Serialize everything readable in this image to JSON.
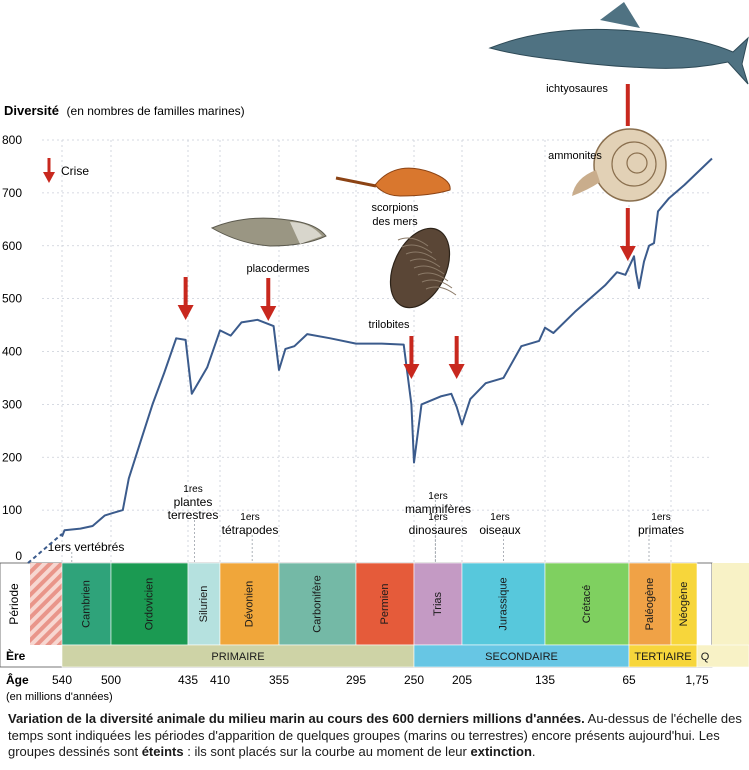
{
  "chart_data": {
    "type": "line",
    "ylabel": "Diversité",
    "ylabel_note": "(en nombres de familles marines)",
    "ylim": [
      0,
      800
    ],
    "yticks": [
      0,
      100,
      200,
      300,
      400,
      500,
      600,
      700,
      800
    ],
    "x_axis_label": "Âge",
    "x_axis_note": "(en millions d'années)",
    "age_ticks": [
      "540",
      "500",
      "435",
      "410",
      "355",
      "295",
      "250",
      "205",
      "135",
      "65",
      "1,75"
    ],
    "legend_crise": "Crise",
    "line_color": "#3b5b8c",
    "arrow_color": "#c8281e",
    "series": [
      {
        "points": [
          [
            540,
            50
          ],
          [
            538,
            62
          ],
          [
            525,
            65
          ],
          [
            515,
            70
          ],
          [
            505,
            90
          ],
          [
            498,
            95
          ],
          [
            490,
            100
          ],
          [
            485,
            160
          ],
          [
            475,
            230
          ],
          [
            465,
            300
          ],
          [
            455,
            360
          ],
          [
            445,
            425
          ],
          [
            437,
            422
          ],
          [
            432,
            320
          ],
          [
            420,
            370
          ],
          [
            410,
            440
          ],
          [
            400,
            430
          ],
          [
            390,
            455
          ],
          [
            375,
            460
          ],
          [
            360,
            448
          ],
          [
            355,
            365
          ],
          [
            350,
            405
          ],
          [
            343,
            410
          ],
          [
            333,
            433
          ],
          [
            315,
            425
          ],
          [
            295,
            415
          ],
          [
            275,
            415
          ],
          [
            258,
            413
          ],
          [
            252,
            300
          ],
          [
            250,
            190
          ],
          [
            243,
            300
          ],
          [
            225,
            315
          ],
          [
            215,
            320
          ],
          [
            210,
            295
          ],
          [
            205,
            262
          ],
          [
            198,
            310
          ],
          [
            185,
            340
          ],
          [
            170,
            350
          ],
          [
            155,
            410
          ],
          [
            140,
            420
          ],
          [
            135,
            445
          ],
          [
            128,
            435
          ],
          [
            110,
            475
          ],
          [
            85,
            525
          ],
          [
            75,
            550
          ],
          [
            68,
            545
          ],
          [
            60,
            580
          ],
          [
            58,
            550
          ],
          [
            55,
            520
          ],
          [
            50,
            570
          ],
          [
            45,
            600
          ],
          [
            40,
            605
          ],
          [
            36,
            665
          ],
          [
            25,
            690
          ],
          [
            12,
            715
          ],
          [
            0,
            765
          ]
        ]
      }
    ],
    "crises": [
      {
        "age": 437
      },
      {
        "age": 365
      },
      {
        "age": 252
      },
      {
        "age": 210
      },
      {
        "age": 66
      }
    ],
    "appearances": [
      {
        "age": 532,
        "lines": [
          "1ers vertébrés"
        ]
      },
      {
        "age": 430,
        "lines": [
          "1res",
          "plantes",
          "terrestres"
        ]
      },
      {
        "age": 380,
        "lines": [
          "1ers",
          "tétrapodes"
        ]
      },
      {
        "age": 230,
        "lines": [
          "1ers",
          "mammifères"
        ]
      },
      {
        "age": 230,
        "lines": [
          "1ers",
          "dinosaures"
        ]
      },
      {
        "age": 170,
        "lines": [
          "1ers",
          "oiseaux"
        ]
      },
      {
        "age": 45,
        "lines": [
          "1ers",
          "primates"
        ]
      }
    ],
    "fossils": [
      {
        "name": "placodermes",
        "age": 360,
        "color": "#8e8a7a"
      },
      {
        "name": "scorpions des mers",
        "age": 250,
        "color": "#d9772e"
      },
      {
        "name": "trilobites",
        "age": 248,
        "color": "#5a4636"
      },
      {
        "name": "ammonites",
        "age": 65,
        "color": "#d6c4a8"
      },
      {
        "name": "ichtyosaures",
        "age": 65,
        "color": "#4f7282"
      }
    ],
    "fossil_labels": {
      "placodermes": "placodermes",
      "scorpions_1": "scorpions",
      "scorpions_2": "des mers",
      "trilobites": "trilobites",
      "ammonites": "ammonites",
      "ichtyosaures": "ichtyosaures"
    }
  },
  "timescale": {
    "periode_label": "Période",
    "ere_label": "Ère",
    "periods": [
      {
        "name": "Cambrien",
        "start": 540,
        "end": 500,
        "color": "#2fa37a"
      },
      {
        "name": "Ordovicien",
        "start": 500,
        "end": 435,
        "color": "#1b9a52"
      },
      {
        "name": "Silurien",
        "start": 435,
        "end": 410,
        "color": "#b5e1df"
      },
      {
        "name": "Dévonien",
        "start": 410,
        "end": 355,
        "color": "#f0a63a"
      },
      {
        "name": "Carbonifère",
        "start": 355,
        "end": 295,
        "color": "#74b9a6"
      },
      {
        "name": "Permien",
        "start": 295,
        "end": 250,
        "color": "#e55b3a"
      },
      {
        "name": "Trias",
        "start": 250,
        "end": 205,
        "color": "#c49ac4"
      },
      {
        "name": "Jurassique",
        "start": 205,
        "end": 135,
        "color": "#57c8dc"
      },
      {
        "name": "Crétacé",
        "start": 135,
        "end": 65,
        "color": "#7fd060"
      },
      {
        "name": "Paléogène",
        "start": 65,
        "end": 23,
        "color": "#f0a246"
      },
      {
        "name": "Néogène",
        "start": 23,
        "end": 1.75,
        "color": "#f7d63b"
      }
    ],
    "eras": [
      {
        "name": "PRIMAIRE",
        "start": 540,
        "end": 250,
        "color": "#ced3a6"
      },
      {
        "name": "SECONDAIRE",
        "start": 250,
        "end": 65,
        "color": "#67c6e4"
      },
      {
        "name": "TERTIAIRE",
        "start": 65,
        "end": 1.75,
        "color": "#f7d63b"
      },
      {
        "name": "Q",
        "start": 1.75,
        "end": 0,
        "color": "#f8f2c6"
      }
    ]
  },
  "caption": {
    "bold": "Variation de la diversité animale du milieu marin au cours des 600 derniers millions d'années.",
    "part1": " Au-dessus de l'échelle des temps sont indiquées les périodes d'apparition de quelques groupes (marins ou terrestres) encore présents aujourd'hui. Les groupes dessinés sont ",
    "bold2": "éteints",
    "part2": " : ils sont placés sur la courbe au moment de leur ",
    "bold3": "extinction",
    "part3": "."
  }
}
